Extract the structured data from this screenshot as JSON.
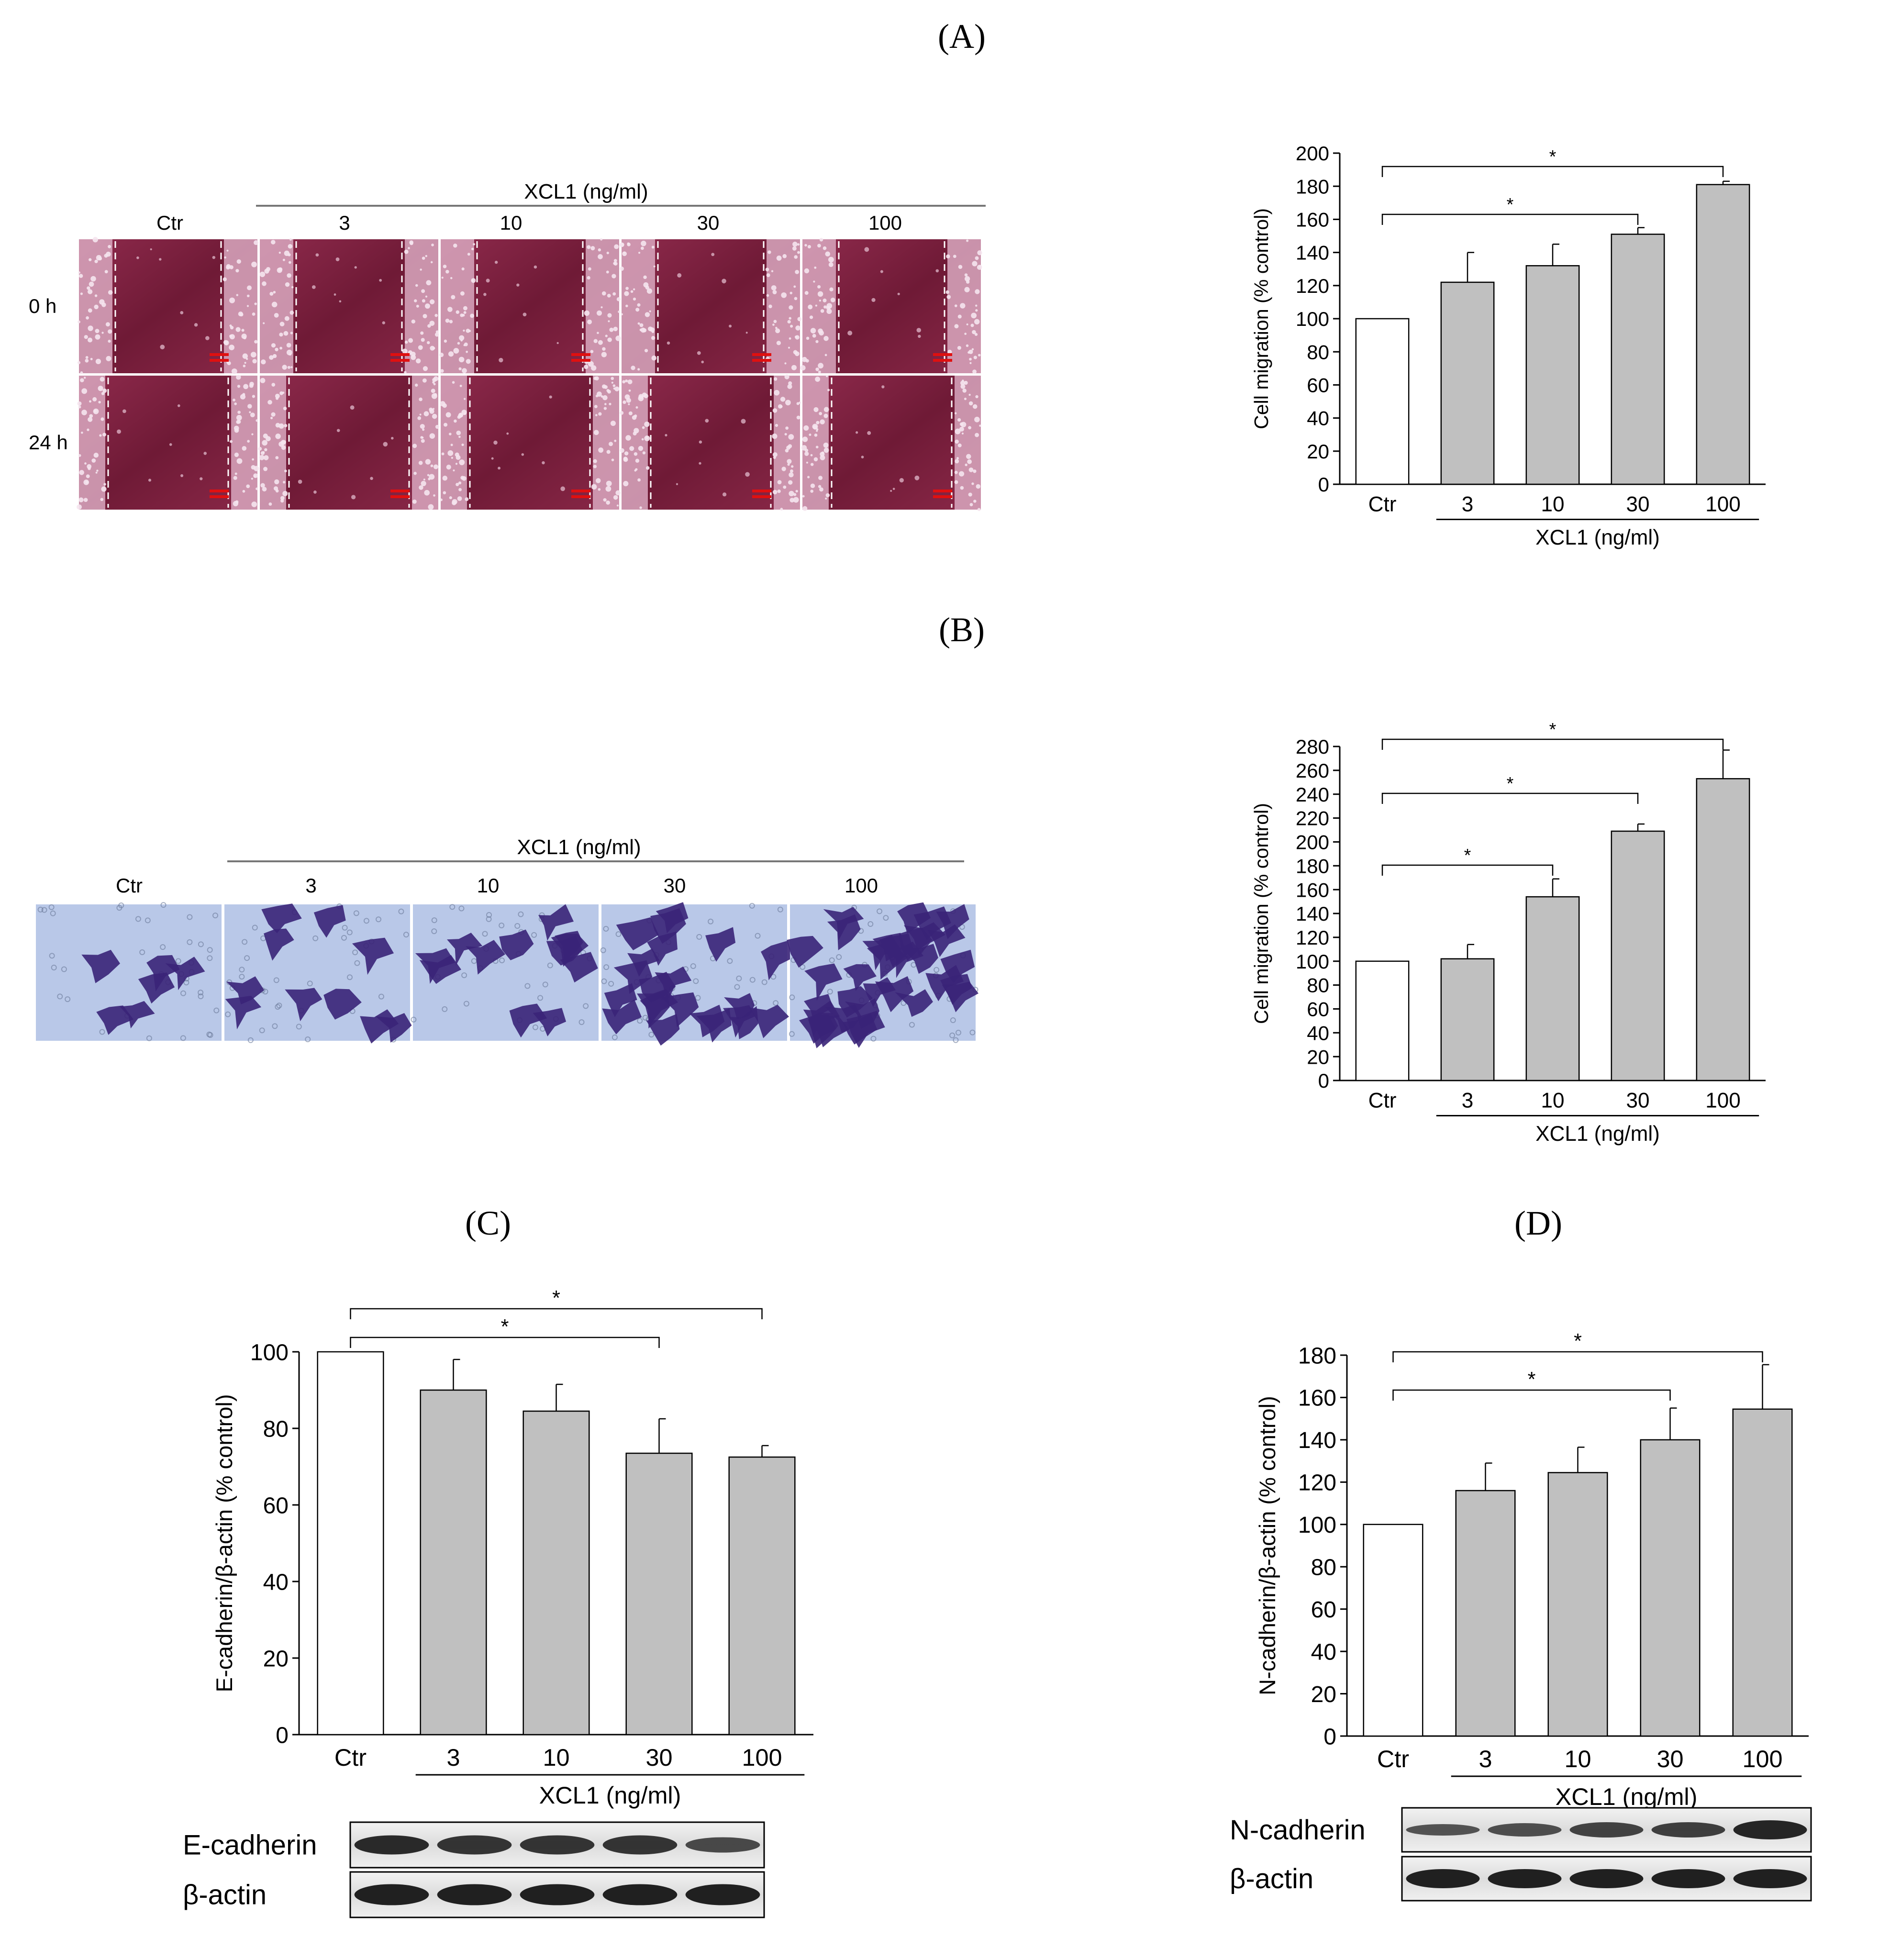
{
  "panels": {
    "A": {
      "label": "(A)"
    },
    "B": {
      "label": "(B)"
    },
    "C": {
      "label": "(C)"
    },
    "D": {
      "label": "(D)"
    }
  },
  "wound_images": {
    "header_group": "XCL1 (ng/ml)",
    "columns": [
      "Ctr",
      "3",
      "10",
      "30",
      "100"
    ],
    "rows": [
      "0 h",
      "24 h"
    ],
    "colors": {
      "tissue": "#7a1e3a",
      "cell_edge": "#d9a8bf",
      "scale_bar": "#e01010"
    }
  },
  "transwell_images": {
    "header_group": "XCL1 (ng/ml)",
    "columns": [
      "Ctr",
      "3",
      "10",
      "30",
      "100"
    ],
    "colors": {
      "background": "#b9c8e8",
      "cells": "#3a2378"
    }
  },
  "blots": {
    "C": {
      "rows": [
        "E-cadherin",
        "β-actin"
      ]
    },
    "D": {
      "rows": [
        "N-cadherin",
        "β-actin"
      ]
    }
  },
  "chart_data": [
    {
      "id": "A",
      "type": "bar",
      "categories": [
        "Ctr",
        "3",
        "10",
        "30",
        "100"
      ],
      "group_label": "XCL1 (ng/ml)",
      "values": [
        100,
        122,
        132,
        151,
        181
      ],
      "errors": [
        0,
        18,
        13,
        4,
        2
      ],
      "ylabel": "Cell migration (% control)",
      "ylim": [
        0,
        200
      ],
      "yticks": [
        0,
        20,
        40,
        60,
        80,
        100,
        120,
        140,
        160,
        180,
        200
      ],
      "significance": [
        {
          "from": 0,
          "to": 3,
          "label": "*"
        },
        {
          "from": 0,
          "to": 4,
          "label": "*"
        }
      ],
      "colors": {
        "control": "#ffffff",
        "treated": "#c0c0c0"
      }
    },
    {
      "id": "B",
      "type": "bar",
      "categories": [
        "Ctr",
        "3",
        "10",
        "30",
        "100"
      ],
      "group_label": "XCL1 (ng/ml)",
      "values": [
        100,
        102,
        154,
        209,
        253
      ],
      "errors": [
        0,
        12,
        15,
        6,
        24
      ],
      "ylabel": "Cell migration (% control)",
      "ylim": [
        0,
        280
      ],
      "yticks": [
        0,
        20,
        40,
        60,
        80,
        100,
        120,
        140,
        160,
        180,
        200,
        220,
        240,
        260,
        280
      ],
      "significance": [
        {
          "from": 0,
          "to": 2,
          "label": "*"
        },
        {
          "from": 0,
          "to": 3,
          "label": "*"
        },
        {
          "from": 0,
          "to": 4,
          "label": "*"
        }
      ],
      "colors": {
        "control": "#ffffff",
        "treated": "#c0c0c0"
      }
    },
    {
      "id": "C",
      "type": "bar",
      "categories": [
        "Ctr",
        "3",
        "10",
        "30",
        "100"
      ],
      "group_label": "XCL1 (ng/ml)",
      "values": [
        100,
        90,
        84.5,
        73.5,
        72.5
      ],
      "errors": [
        0,
        8,
        7,
        9,
        3
      ],
      "ylabel": "E-cadherin/β-actin (% control)",
      "ylim": [
        0,
        100
      ],
      "yticks": [
        0,
        20,
        40,
        60,
        80,
        100
      ],
      "significance": [
        {
          "from": 0,
          "to": 3,
          "label": "*"
        },
        {
          "from": 0,
          "to": 4,
          "label": "*"
        }
      ],
      "colors": {
        "control": "#ffffff",
        "treated": "#c0c0c0"
      }
    },
    {
      "id": "D",
      "type": "bar",
      "categories": [
        "Ctr",
        "3",
        "10",
        "30",
        "100"
      ],
      "group_label": "XCL1 (ng/ml)",
      "values": [
        100,
        116,
        124.5,
        140,
        154.5
      ],
      "errors": [
        0,
        13,
        12,
        15,
        21
      ],
      "ylabel": "N-cadherin/β-actin (% control)",
      "ylim": [
        0,
        180
      ],
      "yticks": [
        0,
        20,
        40,
        60,
        80,
        100,
        120,
        140,
        160,
        180
      ],
      "significance": [
        {
          "from": 0,
          "to": 3,
          "label": "*"
        },
        {
          "from": 0,
          "to": 4,
          "label": "*"
        }
      ],
      "colors": {
        "control": "#ffffff",
        "treated": "#c0c0c0"
      }
    }
  ]
}
